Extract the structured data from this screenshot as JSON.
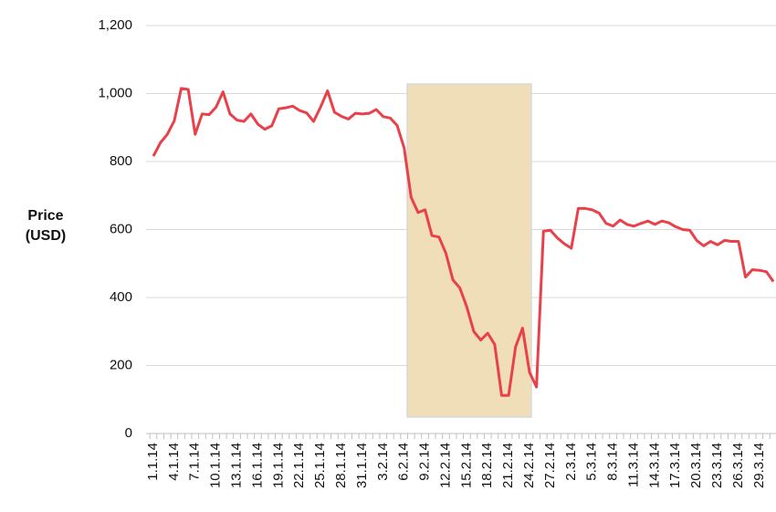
{
  "chart_data": {
    "type": "line",
    "ylabel": "Price (USD)",
    "categories": [
      "1.1.14",
      null,
      null,
      "4.1.14",
      null,
      null,
      "7.1.14",
      null,
      null,
      "10.1.14",
      null,
      null,
      "13.1.14",
      null,
      null,
      "16.1.14",
      null,
      null,
      "19.1.14",
      null,
      null,
      "22.1.14",
      null,
      null,
      "25.1.14",
      null,
      null,
      "28.1.14",
      null,
      null,
      "31.1.14",
      null,
      null,
      "3.2.14",
      null,
      null,
      "6.2.14",
      null,
      null,
      "9.2.14",
      null,
      null,
      "12.2.14",
      null,
      null,
      "15.2.14",
      null,
      null,
      "18.2.14",
      null,
      null,
      "21.2.14",
      null,
      null,
      "24.2.14",
      null,
      null,
      "27.2.14",
      null,
      null,
      "2.3.14",
      null,
      null,
      "5.3.14",
      null,
      null,
      "8.3.14",
      null,
      null,
      "11.3.14",
      null,
      null,
      "14.3.14",
      null,
      null,
      "17.3.14",
      null,
      null,
      "20.3.14",
      null,
      null,
      "23.3.14",
      null,
      null,
      "26.3.14",
      null,
      null,
      "29.3.14",
      null,
      null
    ],
    "values": [
      816,
      855,
      880,
      920,
      1015,
      1012,
      880,
      940,
      938,
      960,
      1005,
      940,
      922,
      918,
      940,
      910,
      895,
      905,
      955,
      958,
      963,
      950,
      943,
      918,
      960,
      1008,
      945,
      933,
      925,
      942,
      940,
      942,
      953,
      932,
      928,
      906,
      840,
      695,
      650,
      658,
      582,
      578,
      530,
      452,
      428,
      372,
      300,
      275,
      295,
      262,
      112,
      112,
      255,
      310,
      180,
      137,
      595,
      598,
      575,
      558,
      545,
      662,
      662,
      658,
      648,
      618,
      610,
      628,
      615,
      610,
      618,
      625,
      615,
      625,
      620,
      608,
      600,
      598,
      568,
      552,
      565,
      555,
      568,
      565,
      565,
      460,
      482,
      480,
      476,
      447
    ],
    "color": "#e8414a",
    "ylim": [
      0,
      1200
    ],
    "yticks": [
      0,
      200,
      400,
      600,
      800,
      {
        "value": 1000,
        "label": "1,000"
      },
      {
        "value": 1200,
        "label": "1,200"
      }
    ],
    "grid": true
  }
}
